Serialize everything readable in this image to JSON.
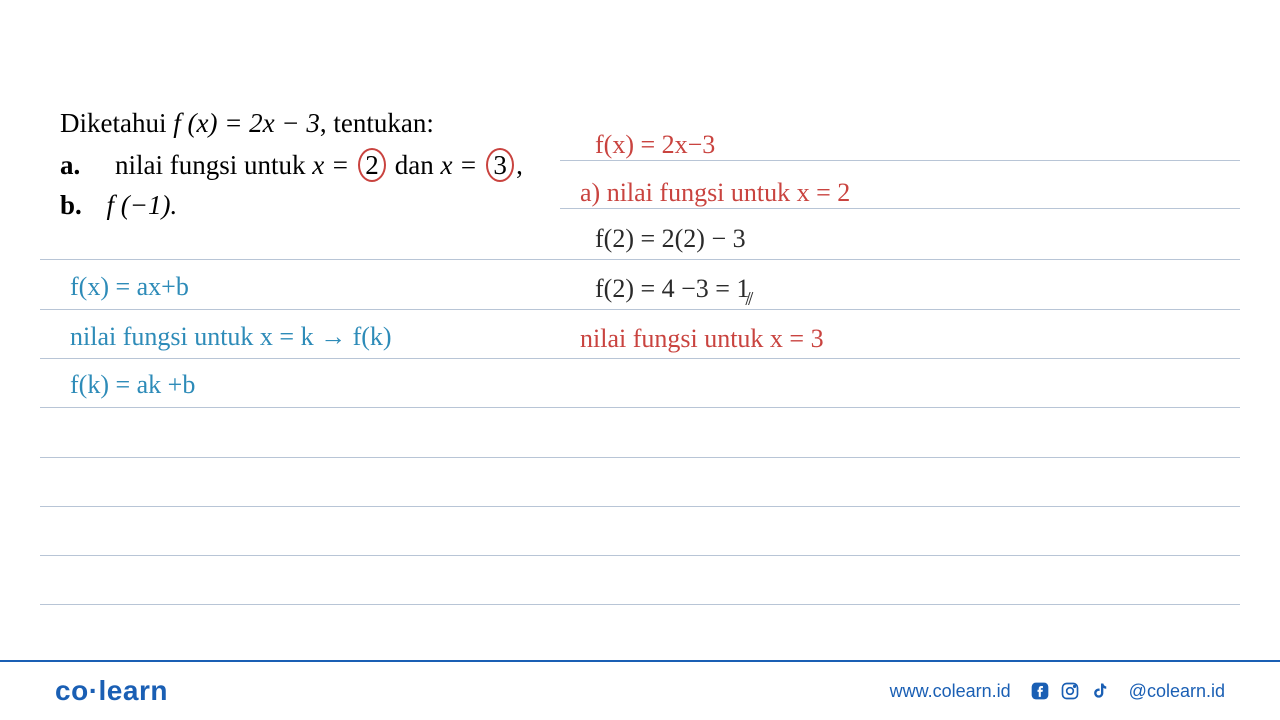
{
  "question": {
    "intro_prefix": "Diketahui ",
    "fx_expr": "f (x) = 2x − 3",
    "intro_suffix": ", tentukan:",
    "a_label": "a.",
    "a_text_prefix": "nilai fungsi untuk ",
    "a_x1_var": "x =",
    "a_x1_val": "2",
    "a_dan": "dan ",
    "a_x2_var": "x =",
    "a_x2_val": "3",
    "a_suffix": ",",
    "b_label": "b.",
    "b_text": "f (−1)."
  },
  "blue_notes": {
    "line1": "f(x) = ax+b",
    "line2_a": "nilai fungsi  untuk   x = k  ",
    "line2_b": " f(k)",
    "line3": "f(k) = ak +b"
  },
  "red_notes": {
    "line1": "f(x) =  2x−3",
    "line2": "a) nilai  fungsi  untuk   x = 2",
    "line4": "nilai  fungsi  untuk   x = 3"
  },
  "black_notes": {
    "line1": "f(2) =  2(2) − 3",
    "line2": "f(2) =  4 −3  = 1",
    "tick": "⫽"
  },
  "rules": {
    "color": "#b8c5d6",
    "positions": [
      160,
      208,
      259,
      309,
      358,
      407,
      457,
      506,
      555,
      604
    ]
  },
  "footer": {
    "logo_co": "co",
    "logo_learn": "learn",
    "url": "www.colearn.id",
    "handle": "@colearn.id"
  },
  "circle_color": "#c9433f",
  "colors": {
    "blue_ink": "#2d8bb8",
    "red_ink": "#c9433f",
    "black_ink": "#2a2a2a",
    "brand": "#1a5fb4",
    "rule": "#b8c5d6"
  }
}
